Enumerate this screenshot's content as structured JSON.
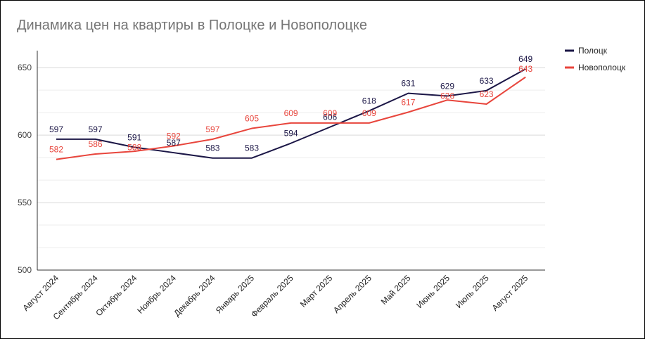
{
  "title": "Динамика цен на квартиры в Полоцке и Новополоцке",
  "colors": {
    "polotsk": "#1b1646",
    "novopolotsk": "#e8453c",
    "grid": "#d9d9d9",
    "axis": "#333333"
  },
  "chart_data": {
    "type": "line",
    "title": "Динамика цен на квартиры в Полоцке и Новополоцке",
    "categories": [
      "Август 2024",
      "Сентябрь 2024",
      "Октябрь 2024",
      "Ноябрь 2024",
      "Декабрь 2024",
      "Январь 2025",
      "Февраль 2025",
      "Март 2025",
      "Апрель 2025",
      "Май 2025",
      "Июнь 2025",
      "Июль 2025",
      "Август 2025"
    ],
    "series": [
      {
        "name": "Полоцк",
        "color": "#1b1646",
        "values": [
          597,
          597,
          591,
          587,
          583,
          583,
          594,
          606,
          618,
          631,
          629,
          633,
          649
        ]
      },
      {
        "name": "Новополоцк",
        "color": "#e8453c",
        "values": [
          582,
          586,
          588,
          592,
          597,
          605,
          609,
          609,
          609,
          617,
          626,
          623,
          643
        ]
      }
    ],
    "yticks": [
      500,
      550,
      600,
      650
    ],
    "ylim": [
      500,
      660
    ],
    "grid": true,
    "legend": "right"
  }
}
